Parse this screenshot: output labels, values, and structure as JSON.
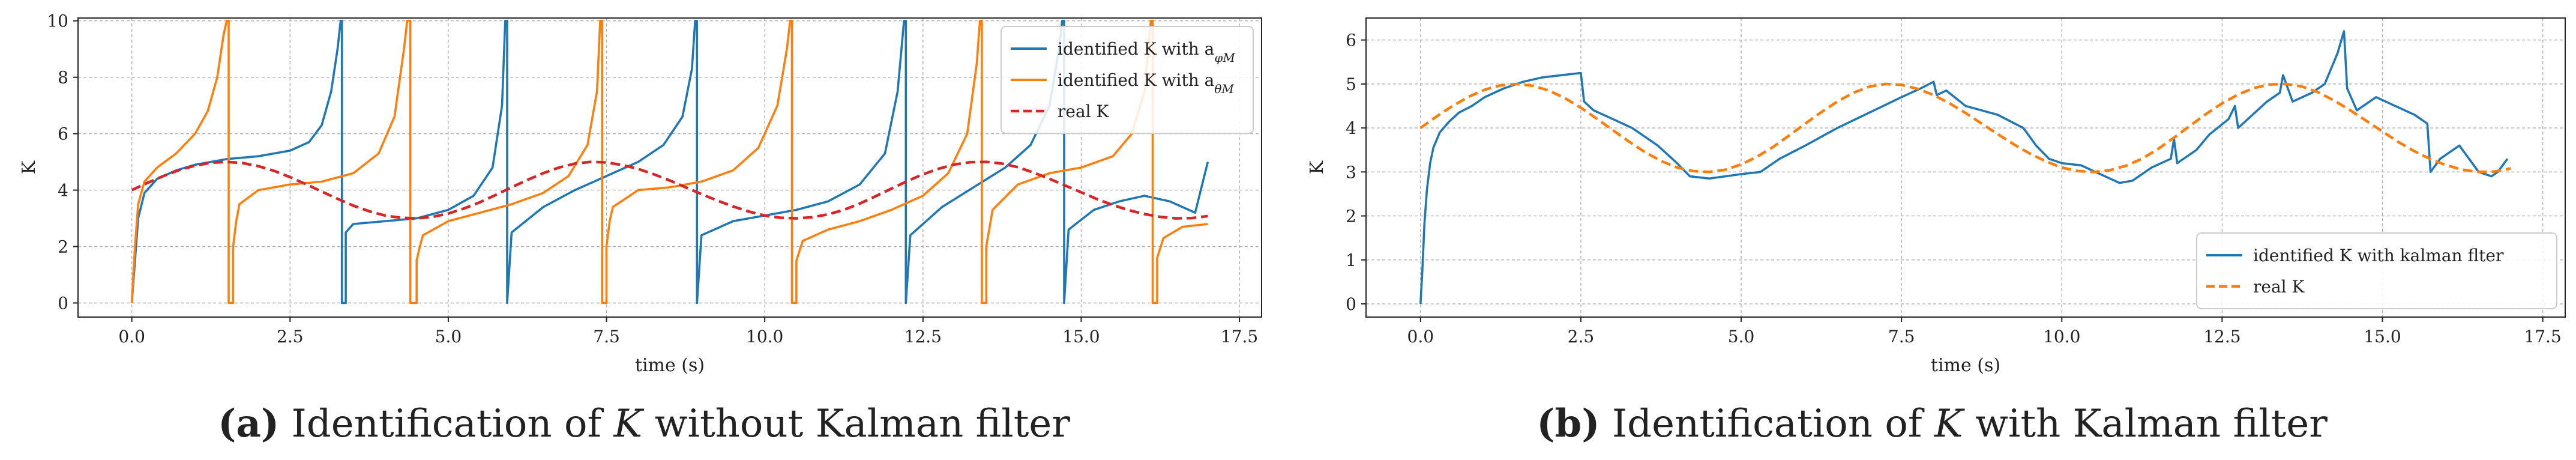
{
  "figure_a": {
    "caption": {
      "letter": "(a)",
      "pre": "Identification of",
      "var": "K",
      "post": "without Kalman filter"
    }
  },
  "figure_b": {
    "caption": {
      "letter": "(b)",
      "pre": "Identification of",
      "var": "K",
      "post": "with Kalman filter"
    }
  },
  "colors": {
    "blue": "#1f77b4",
    "orange": "#ff7f0e",
    "red": "#d62728",
    "grid": "#b0b0b0"
  },
  "chart_data": [
    {
      "type": "line",
      "xlabel": "time (s)",
      "ylabel": "K",
      "xlim": [
        -0.85,
        17.85
      ],
      "ylim": [
        -0.5,
        10.1
      ],
      "xticks": [
        0.0,
        2.5,
        5.0,
        7.5,
        10.0,
        12.5,
        15.0,
        17.5
      ],
      "yticks": [
        0,
        2,
        4,
        6,
        8,
        10
      ],
      "xtick_labels": [
        "0.0",
        "2.5",
        "5.0",
        "7.5",
        "10.0",
        "12.5",
        "15.0",
        "17.5"
      ],
      "ytick_labels": [
        "0",
        "2",
        "4",
        "6",
        "8",
        "10"
      ],
      "grid": true,
      "legend_position": "top-right",
      "series": [
        {
          "name_main": "identified K with a",
          "name_sub": "φM",
          "style": "solid",
          "color": "#1f77b4",
          "x": [
            0.0,
            0.05,
            0.1,
            0.2,
            0.4,
            0.7,
            1.0,
            1.5,
            2.0,
            2.5,
            2.8,
            3.0,
            3.15,
            3.25,
            3.3,
            3.3,
            3.32,
            3.32,
            3.38,
            3.38,
            3.5,
            4.0,
            4.5,
            5.0,
            5.4,
            5.7,
            5.85,
            5.9,
            5.9,
            5.93,
            5.93,
            6.0,
            6.5,
            7.0,
            7.5,
            8.0,
            8.4,
            8.7,
            8.85,
            8.9,
            8.9,
            8.93,
            8.93,
            9.0,
            9.5,
            10.0,
            10.5,
            11.0,
            11.5,
            11.9,
            12.1,
            12.2,
            12.2,
            12.23,
            12.23,
            12.3,
            12.8,
            13.3,
            13.8,
            14.2,
            14.5,
            14.65,
            14.7,
            14.7,
            14.73,
            14.73,
            14.8,
            15.2,
            15.6,
            16.0,
            16.4,
            16.8,
            17.0
          ],
          "y": [
            0.0,
            1.5,
            3.0,
            3.9,
            4.4,
            4.7,
            4.9,
            5.1,
            5.2,
            5.4,
            5.7,
            6.3,
            7.5,
            9.0,
            10.0,
            10.0,
            10.0,
            0.0,
            0.0,
            2.5,
            2.8,
            2.9,
            3.0,
            3.3,
            3.8,
            4.8,
            7.0,
            10.0,
            10.0,
            10.0,
            0.0,
            2.5,
            3.4,
            4.0,
            4.5,
            5.0,
            5.6,
            6.6,
            8.3,
            10.0,
            10.0,
            10.0,
            0.0,
            2.4,
            2.9,
            3.1,
            3.3,
            3.6,
            4.2,
            5.3,
            7.5,
            10.0,
            10.0,
            10.0,
            0.0,
            2.4,
            3.4,
            4.1,
            4.8,
            5.6,
            7.0,
            9.0,
            10.0,
            10.0,
            10.0,
            0.0,
            2.6,
            3.3,
            3.6,
            3.8,
            3.6,
            3.2,
            5.0
          ]
        },
        {
          "name_main": "identified K with a",
          "name_sub": "θM",
          "style": "solid",
          "color": "#ff7f0e",
          "x": [
            0.0,
            0.05,
            0.1,
            0.2,
            0.4,
            0.7,
            1.0,
            1.2,
            1.35,
            1.45,
            1.5,
            1.5,
            1.53,
            1.53,
            1.6,
            1.6,
            1.65,
            1.7,
            2.0,
            2.5,
            3.0,
            3.5,
            3.9,
            4.15,
            4.3,
            4.35,
            4.35,
            4.4,
            4.4,
            4.5,
            4.5,
            4.55,
            4.6,
            5.0,
            5.5,
            6.0,
            6.5,
            6.9,
            7.2,
            7.35,
            7.4,
            7.4,
            7.43,
            7.43,
            7.5,
            7.5,
            7.55,
            7.6,
            8.0,
            8.5,
            9.0,
            9.5,
            9.9,
            10.2,
            10.35,
            10.4,
            10.4,
            10.43,
            10.43,
            10.5,
            10.5,
            10.6,
            11.0,
            11.5,
            12.0,
            12.5,
            12.9,
            13.2,
            13.35,
            13.4,
            13.4,
            13.43,
            13.43,
            13.5,
            13.5,
            13.6,
            14.0,
            14.5,
            15.0,
            15.5,
            15.8,
            16.0,
            16.1,
            16.1,
            16.13,
            16.13,
            16.2,
            16.2,
            16.3,
            16.6,
            17.0
          ],
          "y": [
            0.0,
            2.0,
            3.5,
            4.3,
            4.8,
            5.3,
            6.0,
            6.8,
            8.0,
            9.5,
            10.0,
            10.0,
            10.0,
            0.0,
            0.0,
            2.0,
            2.9,
            3.5,
            4.0,
            4.2,
            4.3,
            4.6,
            5.3,
            6.6,
            9.0,
            10.0,
            10.0,
            10.0,
            0.0,
            0.0,
            1.5,
            2.0,
            2.4,
            2.9,
            3.2,
            3.5,
            3.9,
            4.5,
            5.6,
            7.5,
            10.0,
            10.0,
            10.0,
            0.0,
            0.0,
            2.0,
            2.9,
            3.4,
            4.0,
            4.1,
            4.3,
            4.7,
            5.5,
            7.0,
            9.0,
            10.0,
            10.0,
            10.0,
            0.0,
            0.0,
            1.5,
            2.2,
            2.6,
            2.9,
            3.3,
            3.8,
            4.6,
            6.0,
            8.5,
            10.0,
            10.0,
            10.0,
            0.0,
            0.0,
            2.0,
            3.3,
            4.2,
            4.6,
            4.8,
            5.2,
            6.0,
            7.5,
            10.0,
            10.0,
            10.0,
            0.0,
            0.0,
            1.6,
            2.3,
            2.7,
            2.8
          ]
        },
        {
          "name_main": "real K",
          "name_sub": "",
          "style": "dashed",
          "color": "#d62728",
          "x": [
            0.0,
            0.25,
            0.5,
            0.75,
            1.0,
            1.25,
            1.5,
            1.75,
            2.0,
            2.25,
            2.5,
            2.75,
            3.0,
            3.25,
            3.5,
            3.75,
            4.0,
            4.25,
            4.5,
            4.75,
            5.0,
            5.25,
            5.5,
            5.75,
            6.0,
            6.25,
            6.5,
            6.75,
            7.0,
            7.25,
            7.5,
            7.75,
            8.0,
            8.25,
            8.5,
            8.75,
            9.0,
            9.25,
            9.5,
            9.75,
            10.0,
            10.25,
            10.5,
            10.75,
            11.0,
            11.25,
            11.5,
            11.75,
            12.0,
            12.25,
            12.5,
            12.75,
            13.0,
            13.25,
            13.5,
            13.75,
            14.0,
            14.25,
            14.5,
            14.75,
            15.0,
            15.25,
            15.5,
            15.75,
            16.0,
            16.25,
            16.5,
            16.75,
            17.0
          ],
          "y": [
            4.0,
            4.26,
            4.5,
            4.71,
            4.87,
            4.97,
            5.0,
            4.96,
            4.85,
            4.68,
            4.46,
            4.21,
            3.95,
            3.69,
            3.45,
            3.25,
            3.1,
            3.02,
            3.0,
            3.05,
            3.17,
            3.35,
            3.57,
            3.83,
            4.1,
            4.36,
            4.6,
            4.8,
            4.94,
            5.0,
            4.98,
            4.89,
            4.75,
            4.56,
            4.34,
            4.1,
            3.86,
            3.63,
            3.42,
            3.24,
            3.1,
            3.02,
            3.0,
            3.04,
            3.14,
            3.3,
            3.52,
            3.78,
            4.05,
            4.32,
            4.56,
            4.76,
            4.91,
            4.99,
            5.0,
            4.94,
            4.81,
            4.62,
            4.4,
            4.16,
            3.92,
            3.68,
            3.47,
            3.29,
            3.15,
            3.05,
            3.0,
            3.01,
            3.08
          ]
        }
      ]
    },
    {
      "type": "line",
      "xlabel": "time (s)",
      "ylabel": "K",
      "xlim": [
        -0.85,
        17.85
      ],
      "ylim": [
        -0.3,
        6.5
      ],
      "xticks": [
        0.0,
        2.5,
        5.0,
        7.5,
        10.0,
        12.5,
        15.0,
        17.5
      ],
      "yticks": [
        0,
        1,
        2,
        3,
        4,
        5,
        6
      ],
      "xtick_labels": [
        "0.0",
        "2.5",
        "5.0",
        "7.5",
        "10.0",
        "12.5",
        "15.0",
        "17.5"
      ],
      "ytick_labels": [
        "0",
        "1",
        "2",
        "3",
        "4",
        "5",
        "6"
      ],
      "grid": true,
      "legend_position": "bottom-right",
      "series": [
        {
          "name_main": "identified K with kalman flter",
          "name_sub": "",
          "style": "solid",
          "color": "#1f77b4",
          "x": [
            0.0,
            0.03,
            0.06,
            0.1,
            0.15,
            0.2,
            0.3,
            0.45,
            0.6,
            0.8,
            1.0,
            1.3,
            1.6,
            1.9,
            2.2,
            2.5,
            2.55,
            2.7,
            3.0,
            3.3,
            3.7,
            4.0,
            4.2,
            4.5,
            5.0,
            5.3,
            5.6,
            6.0,
            6.5,
            7.0,
            7.5,
            7.8,
            8.0,
            8.05,
            8.2,
            8.5,
            9.0,
            9.4,
            9.6,
            9.8,
            10.0,
            10.3,
            10.6,
            10.9,
            11.1,
            11.4,
            11.7,
            11.75,
            11.8,
            12.1,
            12.3,
            12.6,
            12.7,
            12.75,
            12.9,
            13.2,
            13.4,
            13.45,
            13.6,
            13.9,
            14.1,
            14.3,
            14.4,
            14.45,
            14.6,
            14.9,
            15.2,
            15.5,
            15.7,
            15.75,
            15.9,
            16.2,
            16.5,
            16.7,
            16.8,
            16.95
          ],
          "y": [
            0.0,
            0.8,
            1.8,
            2.6,
            3.2,
            3.55,
            3.9,
            4.15,
            4.35,
            4.5,
            4.7,
            4.9,
            5.05,
            5.15,
            5.2,
            5.25,
            4.6,
            4.4,
            4.2,
            4.0,
            3.6,
            3.2,
            2.9,
            2.85,
            2.95,
            3.0,
            3.3,
            3.6,
            4.0,
            4.35,
            4.7,
            4.9,
            5.05,
            4.75,
            4.85,
            4.5,
            4.3,
            4.0,
            3.6,
            3.3,
            3.2,
            3.15,
            2.95,
            2.75,
            2.8,
            3.1,
            3.3,
            3.75,
            3.2,
            3.5,
            3.85,
            4.2,
            4.5,
            4.0,
            4.2,
            4.6,
            4.8,
            5.2,
            4.6,
            4.8,
            5.0,
            5.7,
            6.2,
            4.9,
            4.4,
            4.7,
            4.5,
            4.3,
            4.1,
            3.0,
            3.3,
            3.6,
            3.0,
            2.9,
            3.0,
            3.3
          ]
        },
        {
          "name_main": "real K",
          "name_sub": "",
          "style": "dashed",
          "color": "#ff7f0e",
          "x": [
            0.0,
            0.25,
            0.5,
            0.75,
            1.0,
            1.25,
            1.5,
            1.75,
            2.0,
            2.25,
            2.5,
            2.75,
            3.0,
            3.25,
            3.5,
            3.75,
            4.0,
            4.25,
            4.5,
            4.75,
            5.0,
            5.25,
            5.5,
            5.75,
            6.0,
            6.25,
            6.5,
            6.75,
            7.0,
            7.25,
            7.5,
            7.75,
            8.0,
            8.25,
            8.5,
            8.75,
            9.0,
            9.25,
            9.5,
            9.75,
            10.0,
            10.25,
            10.5,
            10.75,
            11.0,
            11.25,
            11.5,
            11.75,
            12.0,
            12.25,
            12.5,
            12.75,
            13.0,
            13.25,
            13.5,
            13.75,
            14.0,
            14.25,
            14.5,
            14.75,
            15.0,
            15.25,
            15.5,
            15.75,
            16.0,
            16.25,
            16.5,
            16.75,
            17.0
          ],
          "y": [
            4.0,
            4.26,
            4.5,
            4.71,
            4.87,
            4.97,
            5.0,
            4.96,
            4.85,
            4.68,
            4.46,
            4.21,
            3.95,
            3.69,
            3.45,
            3.25,
            3.1,
            3.02,
            3.0,
            3.05,
            3.17,
            3.35,
            3.57,
            3.83,
            4.1,
            4.36,
            4.6,
            4.8,
            4.94,
            5.0,
            4.98,
            4.89,
            4.75,
            4.56,
            4.34,
            4.1,
            3.86,
            3.63,
            3.42,
            3.24,
            3.1,
            3.02,
            3.0,
            3.04,
            3.14,
            3.3,
            3.52,
            3.78,
            4.05,
            4.32,
            4.56,
            4.76,
            4.91,
            4.99,
            5.0,
            4.94,
            4.81,
            4.62,
            4.4,
            4.16,
            3.92,
            3.68,
            3.47,
            3.29,
            3.15,
            3.05,
            3.0,
            3.01,
            3.08
          ]
        }
      ]
    }
  ]
}
